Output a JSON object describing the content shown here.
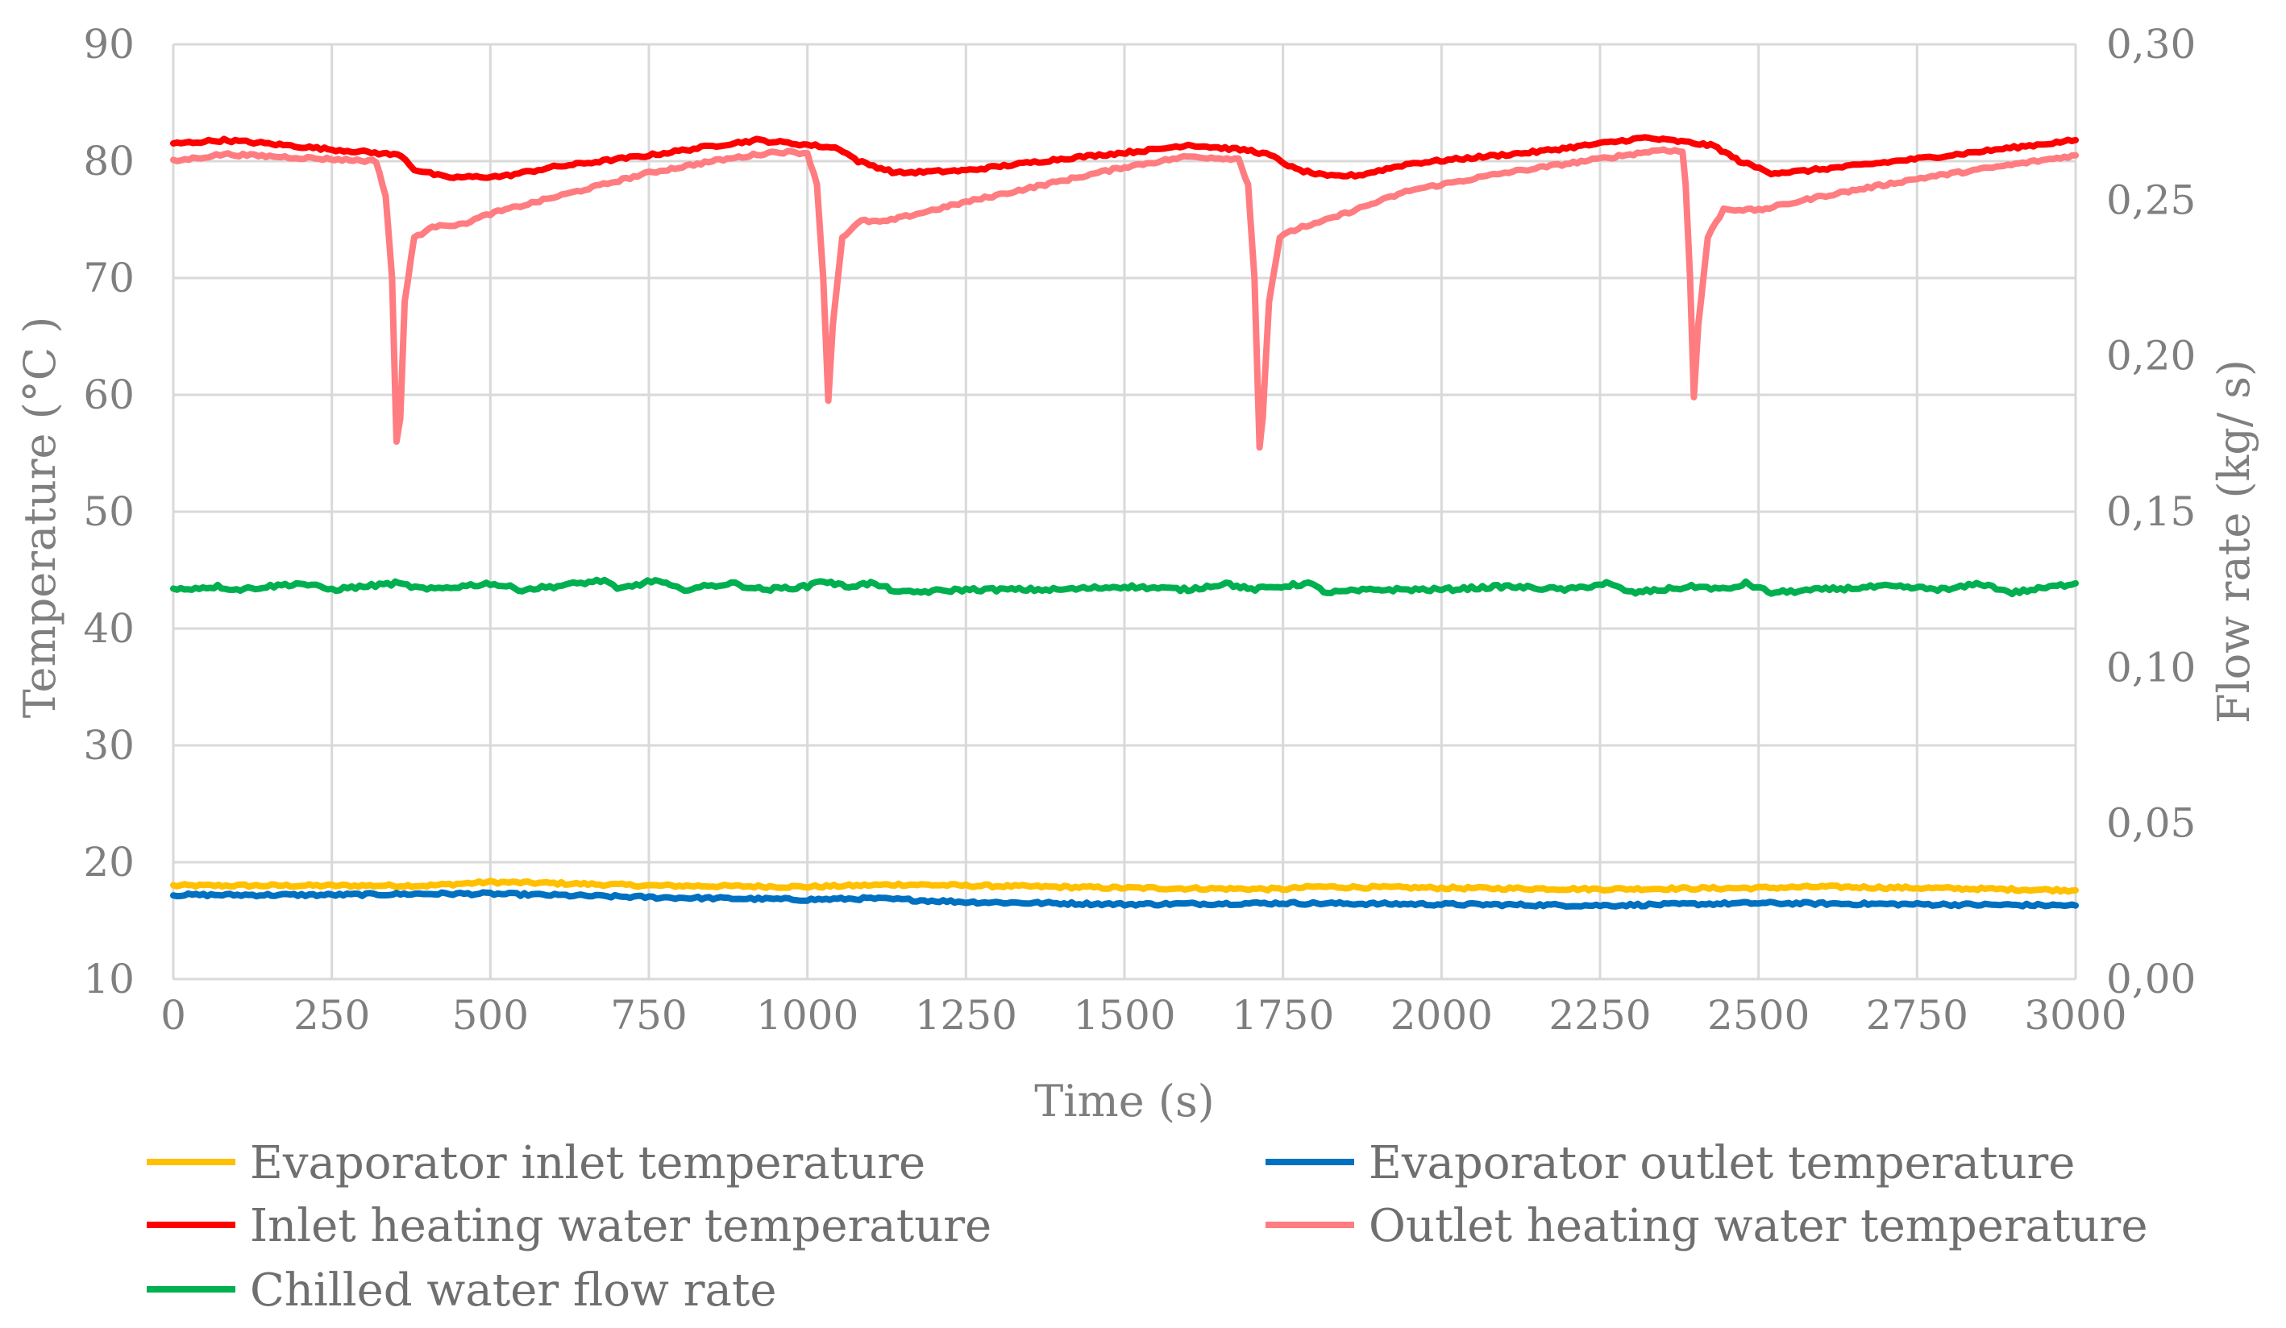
{
  "chart_data": {
    "type": "line",
    "title": "",
    "xlabel": "Time  (s)",
    "ylabel": "Temperature  (°C )",
    "y2label": "Flow rate (kg/ s)",
    "xlim": [
      0,
      3000
    ],
    "ylim": [
      10,
      90
    ],
    "y2lim": [
      0,
      0.3
    ],
    "grid": true,
    "legend_position": "bottom",
    "x_ticks": [
      "0",
      "250",
      "500",
      "750",
      "1000",
      "1250",
      "1500",
      "1750",
      "2000",
      "2250",
      "2500",
      "2750",
      "3000"
    ],
    "y_ticks": [
      "10",
      "20",
      "30",
      "40",
      "50",
      "60",
      "70",
      "80",
      "90"
    ],
    "y2_ticks": [
      "0,00",
      "0,05",
      "0,10",
      "0,15",
      "0,20",
      "0,25",
      "0,30"
    ],
    "series": [
      {
        "name": "Evaporator inlet temperature",
        "axis": "left",
        "color": "#ffc000",
        "points": [
          [
            0,
            18.0
          ],
          [
            250,
            18.0
          ],
          [
            400,
            18.0
          ],
          [
            500,
            18.3
          ],
          [
            600,
            18.2
          ],
          [
            750,
            18.0
          ],
          [
            1000,
            17.9
          ],
          [
            1150,
            18.1
          ],
          [
            1250,
            18.0
          ],
          [
            1500,
            17.8
          ],
          [
            1750,
            17.7
          ],
          [
            1800,
            17.9
          ],
          [
            2000,
            17.8
          ],
          [
            2250,
            17.7
          ],
          [
            2500,
            17.8
          ],
          [
            2600,
            17.9
          ],
          [
            2750,
            17.8
          ],
          [
            3000,
            17.6
          ]
        ]
      },
      {
        "name": "Evaporator outlet temperature",
        "axis": "left",
        "color": "#0070c0",
        "points": [
          [
            0,
            17.2
          ],
          [
            250,
            17.2
          ],
          [
            400,
            17.3
          ],
          [
            500,
            17.3
          ],
          [
            750,
            17.0
          ],
          [
            1000,
            16.8
          ],
          [
            1100,
            16.9
          ],
          [
            1250,
            16.6
          ],
          [
            1500,
            16.4
          ],
          [
            1750,
            16.5
          ],
          [
            2000,
            16.4
          ],
          [
            2250,
            16.3
          ],
          [
            2500,
            16.5
          ],
          [
            2750,
            16.4
          ],
          [
            3000,
            16.3
          ]
        ]
      },
      {
        "name": "Inlet heating water temperature",
        "axis": "left",
        "color": "#ff0000",
        "points": [
          [
            0,
            81.5
          ],
          [
            80,
            81.8
          ],
          [
            150,
            81.5
          ],
          [
            250,
            81.0
          ],
          [
            300,
            80.8
          ],
          [
            360,
            80.5
          ],
          [
            380,
            79.3
          ],
          [
            430,
            78.6
          ],
          [
            520,
            78.7
          ],
          [
            600,
            79.5
          ],
          [
            750,
            80.5
          ],
          [
            850,
            81.3
          ],
          [
            920,
            81.8
          ],
          [
            1000,
            81.4
          ],
          [
            1050,
            81.1
          ],
          [
            1080,
            80.0
          ],
          [
            1140,
            79.0
          ],
          [
            1250,
            79.2
          ],
          [
            1400,
            80.2
          ],
          [
            1550,
            81.0
          ],
          [
            1600,
            81.4
          ],
          [
            1700,
            80.9
          ],
          [
            1730,
            80.5
          ],
          [
            1770,
            79.3
          ],
          [
            1820,
            78.7
          ],
          [
            1870,
            78.8
          ],
          [
            1950,
            79.8
          ],
          [
            2150,
            80.8
          ],
          [
            2250,
            81.5
          ],
          [
            2320,
            82.0
          ],
          [
            2390,
            81.6
          ],
          [
            2430,
            81.3
          ],
          [
            2470,
            80.0
          ],
          [
            2520,
            79.0
          ],
          [
            2560,
            79.1
          ],
          [
            2650,
            79.6
          ],
          [
            2800,
            80.5
          ],
          [
            3000,
            81.8
          ]
        ]
      },
      {
        "name": "Outlet heating water temperature",
        "axis": "left",
        "color": "#ff7c80",
        "points": [
          [
            0,
            80.0
          ],
          [
            80,
            80.6
          ],
          [
            200,
            80.3
          ],
          [
            320,
            80.0
          ],
          [
            335,
            77.0
          ],
          [
            345,
            70.0
          ],
          [
            352,
            56.0
          ],
          [
            358,
            58.0
          ],
          [
            365,
            68.0
          ],
          [
            380,
            73.5
          ],
          [
            420,
            74.6
          ],
          [
            450,
            74.5
          ],
          [
            500,
            75.5
          ],
          [
            750,
            79.0
          ],
          [
            850,
            80.0
          ],
          [
            950,
            80.8
          ],
          [
            1000,
            80.7
          ],
          [
            1015,
            78.0
          ],
          [
            1025,
            70.0
          ],
          [
            1033,
            59.5
          ],
          [
            1040,
            66.0
          ],
          [
            1055,
            73.5
          ],
          [
            1085,
            74.9
          ],
          [
            1120,
            74.8
          ],
          [
            1250,
            76.5
          ],
          [
            1500,
            79.5
          ],
          [
            1600,
            80.4
          ],
          [
            1680,
            80.2
          ],
          [
            1695,
            78.0
          ],
          [
            1705,
            70.0
          ],
          [
            1713,
            55.5
          ],
          [
            1718,
            58.0
          ],
          [
            1728,
            68.0
          ],
          [
            1745,
            73.5
          ],
          [
            1780,
            74.4
          ],
          [
            1800,
            74.6
          ],
          [
            1950,
            77.5
          ],
          [
            2100,
            79.0
          ],
          [
            2250,
            80.2
          ],
          [
            2350,
            81.0
          ],
          [
            2380,
            80.8
          ],
          [
            2385,
            78.0
          ],
          [
            2392,
            70.0
          ],
          [
            2398,
            59.8
          ],
          [
            2405,
            66.0
          ],
          [
            2420,
            73.5
          ],
          [
            2445,
            75.9
          ],
          [
            2500,
            75.8
          ],
          [
            2600,
            77.0
          ],
          [
            2750,
            78.5
          ],
          [
            3000,
            80.5
          ]
        ]
      },
      {
        "name": "Chilled water flow rate",
        "axis": "right",
        "color": "#00b050",
        "points": [
          [
            0,
            0.125
          ],
          [
            70,
            0.126
          ],
          [
            100,
            0.125
          ],
          [
            200,
            0.127
          ],
          [
            250,
            0.125
          ],
          [
            300,
            0.126
          ],
          [
            350,
            0.127
          ],
          [
            400,
            0.125
          ],
          [
            450,
            0.126
          ],
          [
            500,
            0.127
          ],
          [
            550,
            0.125
          ],
          [
            600,
            0.126
          ],
          [
            680,
            0.128
          ],
          [
            700,
            0.125
          ],
          [
            760,
            0.128
          ],
          [
            800,
            0.125
          ],
          [
            880,
            0.127
          ],
          [
            930,
            0.125
          ],
          [
            1000,
            0.126
          ],
          [
            1020,
            0.128
          ],
          [
            1060,
            0.126
          ],
          [
            1100,
            0.127
          ],
          [
            1150,
            0.124
          ],
          [
            1250,
            0.125
          ],
          [
            1400,
            0.125
          ],
          [
            1500,
            0.126
          ],
          [
            1600,
            0.125
          ],
          [
            1660,
            0.127
          ],
          [
            1700,
            0.125
          ],
          [
            1790,
            0.127
          ],
          [
            1820,
            0.124
          ],
          [
            1900,
            0.125
          ],
          [
            2000,
            0.125
          ],
          [
            2100,
            0.126
          ],
          [
            2200,
            0.125
          ],
          [
            2260,
            0.127
          ],
          [
            2300,
            0.124
          ],
          [
            2400,
            0.126
          ],
          [
            2450,
            0.125
          ],
          [
            2480,
            0.127
          ],
          [
            2520,
            0.124
          ],
          [
            2600,
            0.125
          ],
          [
            2700,
            0.126
          ],
          [
            2800,
            0.125
          ],
          [
            2850,
            0.127
          ],
          [
            2900,
            0.124
          ],
          [
            3000,
            0.127
          ]
        ]
      }
    ]
  }
}
